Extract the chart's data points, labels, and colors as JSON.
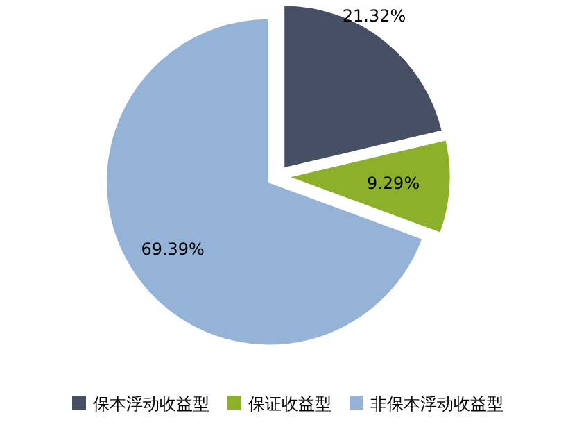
{
  "chart_data": {
    "type": "pie",
    "categories": [
      "保本浮动收益型",
      "保证收益型",
      "非保本浮动收益型"
    ],
    "values": [
      21.32,
      9.29,
      69.39
    ],
    "colors": [
      "#464f63",
      "#8db02b",
      "#95b3d7"
    ],
    "value_labels": [
      "21.32%",
      "9.29%",
      "69.39%"
    ],
    "legend": "bottom"
  }
}
